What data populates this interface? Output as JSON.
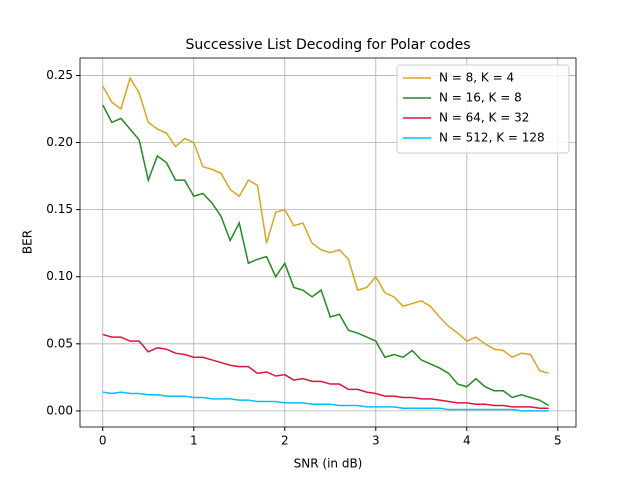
{
  "chart_data": {
    "type": "line",
    "title": "Successive List Decoding for Polar codes",
    "xlabel": "SNR (in dB)",
    "ylabel": "BER",
    "x": [
      0,
      0.1,
      0.2,
      0.3,
      0.4,
      0.5,
      0.6,
      0.7,
      0.8,
      0.9,
      1.0,
      1.1,
      1.2,
      1.3,
      1.4,
      1.5,
      1.6,
      1.7,
      1.8,
      1.9,
      2.0,
      2.1,
      2.2,
      2.3,
      2.4,
      2.5,
      2.6,
      2.7,
      2.8,
      2.9,
      3.0,
      3.1,
      3.2,
      3.3,
      3.4,
      3.5,
      3.6,
      3.7,
      3.8,
      3.9,
      4.0,
      4.1,
      4.2,
      4.3,
      4.4,
      4.5,
      4.6,
      4.7,
      4.8,
      4.9
    ],
    "series": [
      {
        "name": "N = 8, K = 4",
        "color": "#daa520",
        "values": [
          0.242,
          0.23,
          0.225,
          0.248,
          0.237,
          0.215,
          0.21,
          0.207,
          0.197,
          0.203,
          0.2,
          0.182,
          0.18,
          0.177,
          0.165,
          0.16,
          0.172,
          0.168,
          0.125,
          0.148,
          0.15,
          0.138,
          0.14,
          0.125,
          0.12,
          0.118,
          0.12,
          0.113,
          0.09,
          0.092,
          0.1,
          0.088,
          0.085,
          0.078,
          0.08,
          0.082,
          0.078,
          0.07,
          0.063,
          0.058,
          0.052,
          0.055,
          0.05,
          0.046,
          0.045,
          0.04,
          0.043,
          0.042,
          0.03,
          0.028
        ]
      },
      {
        "name": "N = 16, K = 8",
        "color": "#228b22",
        "values": [
          0.228,
          0.215,
          0.218,
          0.21,
          0.202,
          0.172,
          0.19,
          0.185,
          0.172,
          0.172,
          0.16,
          0.162,
          0.155,
          0.145,
          0.127,
          0.14,
          0.11,
          0.113,
          0.115,
          0.1,
          0.11,
          0.092,
          0.09,
          0.085,
          0.09,
          0.07,
          0.072,
          0.06,
          0.058,
          0.055,
          0.052,
          0.04,
          0.042,
          0.04,
          0.045,
          0.038,
          0.035,
          0.032,
          0.028,
          0.02,
          0.018,
          0.024,
          0.018,
          0.015,
          0.015,
          0.01,
          0.012,
          0.01,
          0.008,
          0.004
        ]
      },
      {
        "name": "N = 64, K = 32",
        "color": "#dc143c",
        "values": [
          0.057,
          0.055,
          0.055,
          0.052,
          0.052,
          0.044,
          0.047,
          0.046,
          0.043,
          0.042,
          0.04,
          0.04,
          0.038,
          0.036,
          0.034,
          0.033,
          0.033,
          0.028,
          0.029,
          0.026,
          0.027,
          0.023,
          0.024,
          0.022,
          0.022,
          0.02,
          0.02,
          0.016,
          0.016,
          0.014,
          0.013,
          0.011,
          0.011,
          0.01,
          0.01,
          0.009,
          0.009,
          0.008,
          0.007,
          0.006,
          0.006,
          0.005,
          0.005,
          0.004,
          0.004,
          0.003,
          0.003,
          0.003,
          0.002,
          0.002
        ]
      },
      {
        "name": "N = 512, K = 128",
        "color": "#00bfff",
        "values": [
          0.014,
          0.013,
          0.014,
          0.013,
          0.013,
          0.012,
          0.012,
          0.011,
          0.011,
          0.011,
          0.01,
          0.01,
          0.009,
          0.009,
          0.009,
          0.008,
          0.008,
          0.007,
          0.007,
          0.007,
          0.006,
          0.006,
          0.006,
          0.005,
          0.005,
          0.005,
          0.004,
          0.004,
          0.004,
          0.003,
          0.003,
          0.003,
          0.003,
          0.002,
          0.002,
          0.002,
          0.002,
          0.002,
          0.001,
          0.001,
          0.001,
          0.001,
          0.001,
          0.001,
          0.001,
          0.001,
          0,
          0,
          0,
          0
        ]
      }
    ],
    "xlim": [
      -0.25,
      5.2
    ],
    "ylim": [
      -0.012,
      0.263
    ],
    "xticks": [
      0,
      1,
      2,
      3,
      4,
      5
    ],
    "yticks": [
      {
        "value": 0,
        "label": "0.00"
      },
      {
        "value": 0.05,
        "label": "0.05"
      },
      {
        "value": 0.1,
        "label": "0.10"
      },
      {
        "value": 0.15,
        "label": "0.15"
      },
      {
        "value": 0.2,
        "label": "0.20"
      },
      {
        "value": 0.25,
        "label": "0.25"
      }
    ],
    "grid": true,
    "legend": "upper right"
  }
}
